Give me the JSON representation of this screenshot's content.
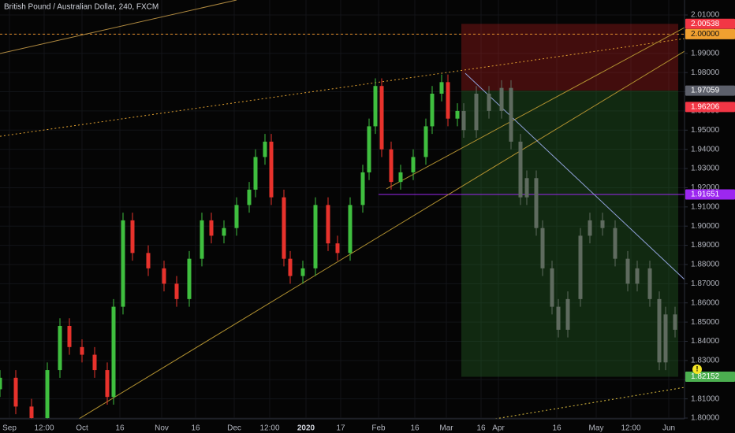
{
  "chart_data": {
    "type": "candlestick",
    "title": "British Pound / Australian Dollar, 240, FXCM",
    "grid": true,
    "xlim": [
      0,
      217
    ],
    "xticks": [
      {
        "value": 3,
        "label": "Sep"
      },
      {
        "value": 14,
        "label": "12:00"
      },
      {
        "value": 26,
        "label": "Oct"
      },
      {
        "value": 38,
        "label": "16"
      },
      {
        "value": 51.25,
        "label": "Nov"
      },
      {
        "value": 62,
        "label": "16"
      },
      {
        "value": 74.25,
        "label": "Dec"
      },
      {
        "value": 85.5,
        "label": "12:00"
      },
      {
        "value": 97,
        "label": "2020"
      },
      {
        "value": 108,
        "label": "17"
      },
      {
        "value": 120,
        "label": "Feb"
      },
      {
        "value": 131.5,
        "label": "16"
      },
      {
        "value": 141.5,
        "label": "Mar"
      },
      {
        "value": 152.5,
        "label": "16"
      },
      {
        "value": 158,
        "label": "Apr"
      },
      {
        "value": 176.5,
        "label": "16"
      },
      {
        "value": 189,
        "label": "May"
      },
      {
        "value": 200,
        "label": "12:00"
      },
      {
        "value": 212,
        "label": "Jun"
      }
    ],
    "ylim": [
      1.7996,
      2.0178
    ],
    "yticks": [
      {
        "value": 1.8,
        "label": "1.80000"
      },
      {
        "value": 1.81,
        "label": "1.81000"
      },
      {
        "value": 1.82,
        "label": "1.82000"
      },
      {
        "value": 1.83,
        "label": "1.83000"
      },
      {
        "value": 1.84,
        "label": "1.84000"
      },
      {
        "value": 1.85,
        "label": "1.85000"
      },
      {
        "value": 1.86,
        "label": "1.86000"
      },
      {
        "value": 1.87,
        "label": "1.87000"
      },
      {
        "value": 1.88,
        "label": "1.88000"
      },
      {
        "value": 1.89,
        "label": "1.89000"
      },
      {
        "value": 1.9,
        "label": "1.90000"
      },
      {
        "value": 1.91,
        "label": "1.91000"
      },
      {
        "value": 1.92,
        "label": "1.92000"
      },
      {
        "value": 1.93,
        "label": "1.93000"
      },
      {
        "value": 1.94,
        "label": "1.94000"
      },
      {
        "value": 1.95,
        "label": "1.95000"
      },
      {
        "value": 1.96,
        "label": "1.96000"
      },
      {
        "value": 1.97,
        "label": "1.97000"
      },
      {
        "value": 1.98,
        "label": "1.98000"
      },
      {
        "value": 1.99,
        "label": "1.99000"
      },
      {
        "value": 2.0,
        "label": "2.00000"
      },
      {
        "value": 2.01,
        "label": "2.01000"
      }
    ],
    "candles": [
      {
        "up_color": "#3fbf3f",
        "down_color": "#e8322c",
        "x": [
          0,
          5,
          10,
          15,
          19,
          22,
          26,
          30,
          34,
          36,
          39,
          42,
          47,
          52,
          56,
          60,
          64,
          67,
          71,
          75,
          79,
          81,
          84,
          86,
          90,
          92,
          96,
          100,
          104,
          107,
          111,
          115,
          117,
          119,
          121,
          124,
          127,
          131,
          135,
          137,
          140,
          142,
          145
        ],
        "open": [
          1.815,
          1.821,
          1.806,
          1.8,
          1.825,
          1.848,
          1.837,
          1.833,
          1.825,
          1.811,
          1.858,
          1.903,
          1.886,
          1.878,
          1.87,
          1.862,
          1.883,
          1.903,
          1.895,
          1.899,
          1.911,
          1.919,
          1.936,
          1.944,
          1.915,
          1.883,
          1.874,
          1.878,
          1.911,
          1.891,
          1.886,
          1.911,
          1.928,
          1.952,
          1.973,
          1.94,
          1.923,
          1.928,
          1.936,
          1.952,
          1.969,
          1.975,
          1.956
        ],
        "high": [
          1.825,
          1.825,
          1.81,
          1.829,
          1.852,
          1.852,
          1.841,
          1.837,
          1.829,
          1.862,
          1.907,
          1.907,
          1.89,
          1.882,
          1.874,
          1.887,
          1.907,
          1.907,
          1.903,
          1.915,
          1.923,
          1.94,
          1.948,
          1.948,
          1.919,
          1.887,
          1.882,
          1.915,
          1.915,
          1.895,
          1.915,
          1.932,
          1.956,
          1.977,
          1.977,
          1.944,
          1.932,
          1.94,
          1.956,
          1.973,
          1.979,
          1.979,
          1.964
        ],
        "low": [
          1.811,
          1.802,
          1.796,
          1.796,
          1.821,
          1.833,
          1.829,
          1.821,
          1.807,
          1.807,
          1.854,
          1.882,
          1.874,
          1.866,
          1.858,
          1.858,
          1.879,
          1.891,
          1.891,
          1.895,
          1.907,
          1.915,
          1.932,
          1.911,
          1.879,
          1.87,
          1.87,
          1.874,
          1.887,
          1.882,
          1.882,
          1.907,
          1.924,
          1.948,
          1.936,
          1.919,
          1.919,
          1.924,
          1.932,
          1.948,
          1.965,
          1.952,
          1.952
        ],
        "close": [
          1.821,
          1.806,
          1.8,
          1.825,
          1.848,
          1.837,
          1.833,
          1.825,
          1.811,
          1.858,
          1.903,
          1.886,
          1.878,
          1.87,
          1.862,
          1.883,
          1.903,
          1.895,
          1.899,
          1.911,
          1.919,
          1.936,
          1.944,
          1.915,
          1.883,
          1.874,
          1.878,
          1.911,
          1.891,
          1.886,
          1.911,
          1.928,
          1.952,
          1.973,
          1.94,
          1.923,
          1.928,
          1.936,
          1.952,
          1.969,
          1.975,
          1.956,
          1.96
        ]
      },
      {
        "up_color": "#5f6b5f",
        "down_color": "#5f6b5f",
        "x": [
          147,
          151,
          155,
          159,
          162,
          165,
          167,
          170,
          172,
          175,
          177,
          180,
          184,
          187,
          191,
          195,
          199,
          202,
          206,
          209,
          211,
          214
        ],
        "open": [
          1.96,
          1.95,
          1.969,
          1.96,
          1.972,
          1.944,
          1.915,
          1.925,
          1.899,
          1.878,
          1.858,
          1.846,
          1.862,
          1.895,
          1.903,
          1.899,
          1.883,
          1.87,
          1.878,
          1.862,
          1.829,
          1.854
        ],
        "high": [
          1.964,
          1.973,
          1.973,
          1.976,
          1.976,
          1.948,
          1.929,
          1.929,
          1.903,
          1.882,
          1.862,
          1.866,
          1.899,
          1.907,
          1.907,
          1.903,
          1.887,
          1.882,
          1.882,
          1.866,
          1.858,
          1.858
        ],
        "low": [
          1.946,
          1.946,
          1.956,
          1.956,
          1.94,
          1.911,
          1.911,
          1.895,
          1.874,
          1.854,
          1.842,
          1.842,
          1.858,
          1.891,
          1.895,
          1.879,
          1.866,
          1.866,
          1.858,
          1.825,
          1.825,
          1.842
        ],
        "close": [
          1.95,
          1.969,
          1.96,
          1.972,
          1.944,
          1.915,
          1.925,
          1.899,
          1.878,
          1.858,
          1.846,
          1.862,
          1.895,
          1.903,
          1.899,
          1.883,
          1.87,
          1.878,
          1.862,
          1.829,
          1.854,
          1.846
        ]
      }
    ],
    "zones": [
      {
        "from": 146.25,
        "to": 215,
        "low": 1.97059,
        "high": 2.00538,
        "color": "rgba(180,30,30,0.35)"
      },
      {
        "from": 146.25,
        "to": 215,
        "low": 1.82152,
        "high": 1.97059,
        "color": "rgba(40,110,40,0.35)"
      }
    ],
    "hlines": [
      {
        "value": 2.0,
        "from": 0,
        "to": 217,
        "color": "#e08a2a",
        "dash": "3 3"
      },
      {
        "value": 1.91651,
        "from": 120,
        "to": 217,
        "color": "#9c27f0",
        "dash": "none"
      }
    ],
    "lines": [
      {
        "points": [
          [
            0,
            1.9468
          ],
          [
            217,
            1.9977
          ]
        ],
        "color": "#e0a030",
        "dash": "2 3"
      },
      {
        "points": [
          [
            0,
            1.9899
          ],
          [
            75,
            2.0178
          ]
        ],
        "color": "#b08a40",
        "dash": "none"
      },
      {
        "points": [
          [
            25,
            1.7996
          ],
          [
            217,
            1.9911
          ]
        ],
        "color": "#b09030",
        "dash": "none"
      },
      {
        "points": [
          [
            122.5,
            1.9194
          ],
          [
            217,
            2.0034
          ]
        ],
        "color": "#b09030",
        "dash": "none"
      },
      {
        "points": [
          [
            157,
            1.7996
          ],
          [
            217,
            1.816
          ]
        ],
        "color": "#e0c040",
        "dash": "2 3"
      },
      {
        "points": [
          [
            147.5,
            1.9796
          ],
          [
            217,
            1.8722
          ]
        ],
        "color": "#8fa0d8",
        "dash": "none"
      }
    ],
    "price_tags": [
      {
        "value": 2.00538,
        "label": "2.00538",
        "color": "#f23645",
        "text_color": "#ffffff"
      },
      {
        "value": 2.0,
        "label": "2.00000",
        "color": "#f0a030",
        "text_color": "#111111"
      },
      {
        "value": 1.97059,
        "label": "1.97059",
        "color": "#5d606b",
        "text_color": "#ffffff"
      },
      {
        "value": 1.96206,
        "label": "1.96206",
        "color": "#f23645",
        "text_color": "#ffffff"
      },
      {
        "value": 1.91651,
        "label": "1.91651",
        "color": "#9c27f0",
        "text_color": "#ffffff"
      },
      {
        "value": 1.82152,
        "label": "1.82152",
        "color": "#4caf50",
        "text_color": "#ffffff"
      }
    ]
  }
}
